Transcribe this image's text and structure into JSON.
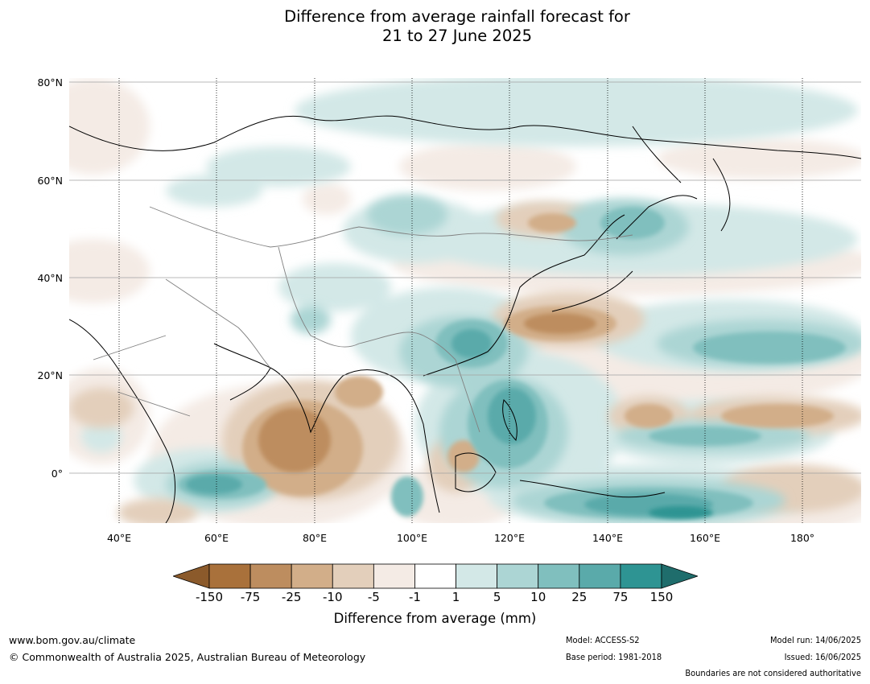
{
  "title_line1": "Difference from average rainfall forecast for",
  "title_line2": "21 to 27 June 2025",
  "map": {
    "lat_labels": [
      "80°N",
      "60°N",
      "40°N",
      "20°N",
      "0°"
    ],
    "lon_labels": [
      "40°E",
      "60°E",
      "80°E",
      "100°E",
      "120°E",
      "140°E",
      "160°E",
      "180°"
    ]
  },
  "colorbar": {
    "label": "Difference from average (mm)",
    "ticks": [
      "-150",
      "-75",
      "-25",
      "-10",
      "-5",
      "-1",
      "1",
      "5",
      "10",
      "25",
      "75",
      "150"
    ],
    "colors": [
      "#8b5a2b",
      "#a9713b",
      "#bd8d5f",
      "#d2ae89",
      "#e3cfbb",
      "#f4ebe5",
      "#ffffff",
      "#d3e8e7",
      "#acd5d4",
      "#80bfbe",
      "#5aaaaa",
      "#2e9493",
      "#1f6d6c"
    ]
  },
  "footer": {
    "website": "www.bom.gov.au/climate",
    "copyright": "© Commonwealth of Australia 2025, Australian Bureau of Meteorology",
    "model": "Model: ACCESS-S2",
    "base_period": "Base period: 1981-2018",
    "model_run": "Model run: 14/06/2025",
    "issued": "Issued: 16/06/2025",
    "disclaimer": "Boundaries are not considered authoritative"
  }
}
